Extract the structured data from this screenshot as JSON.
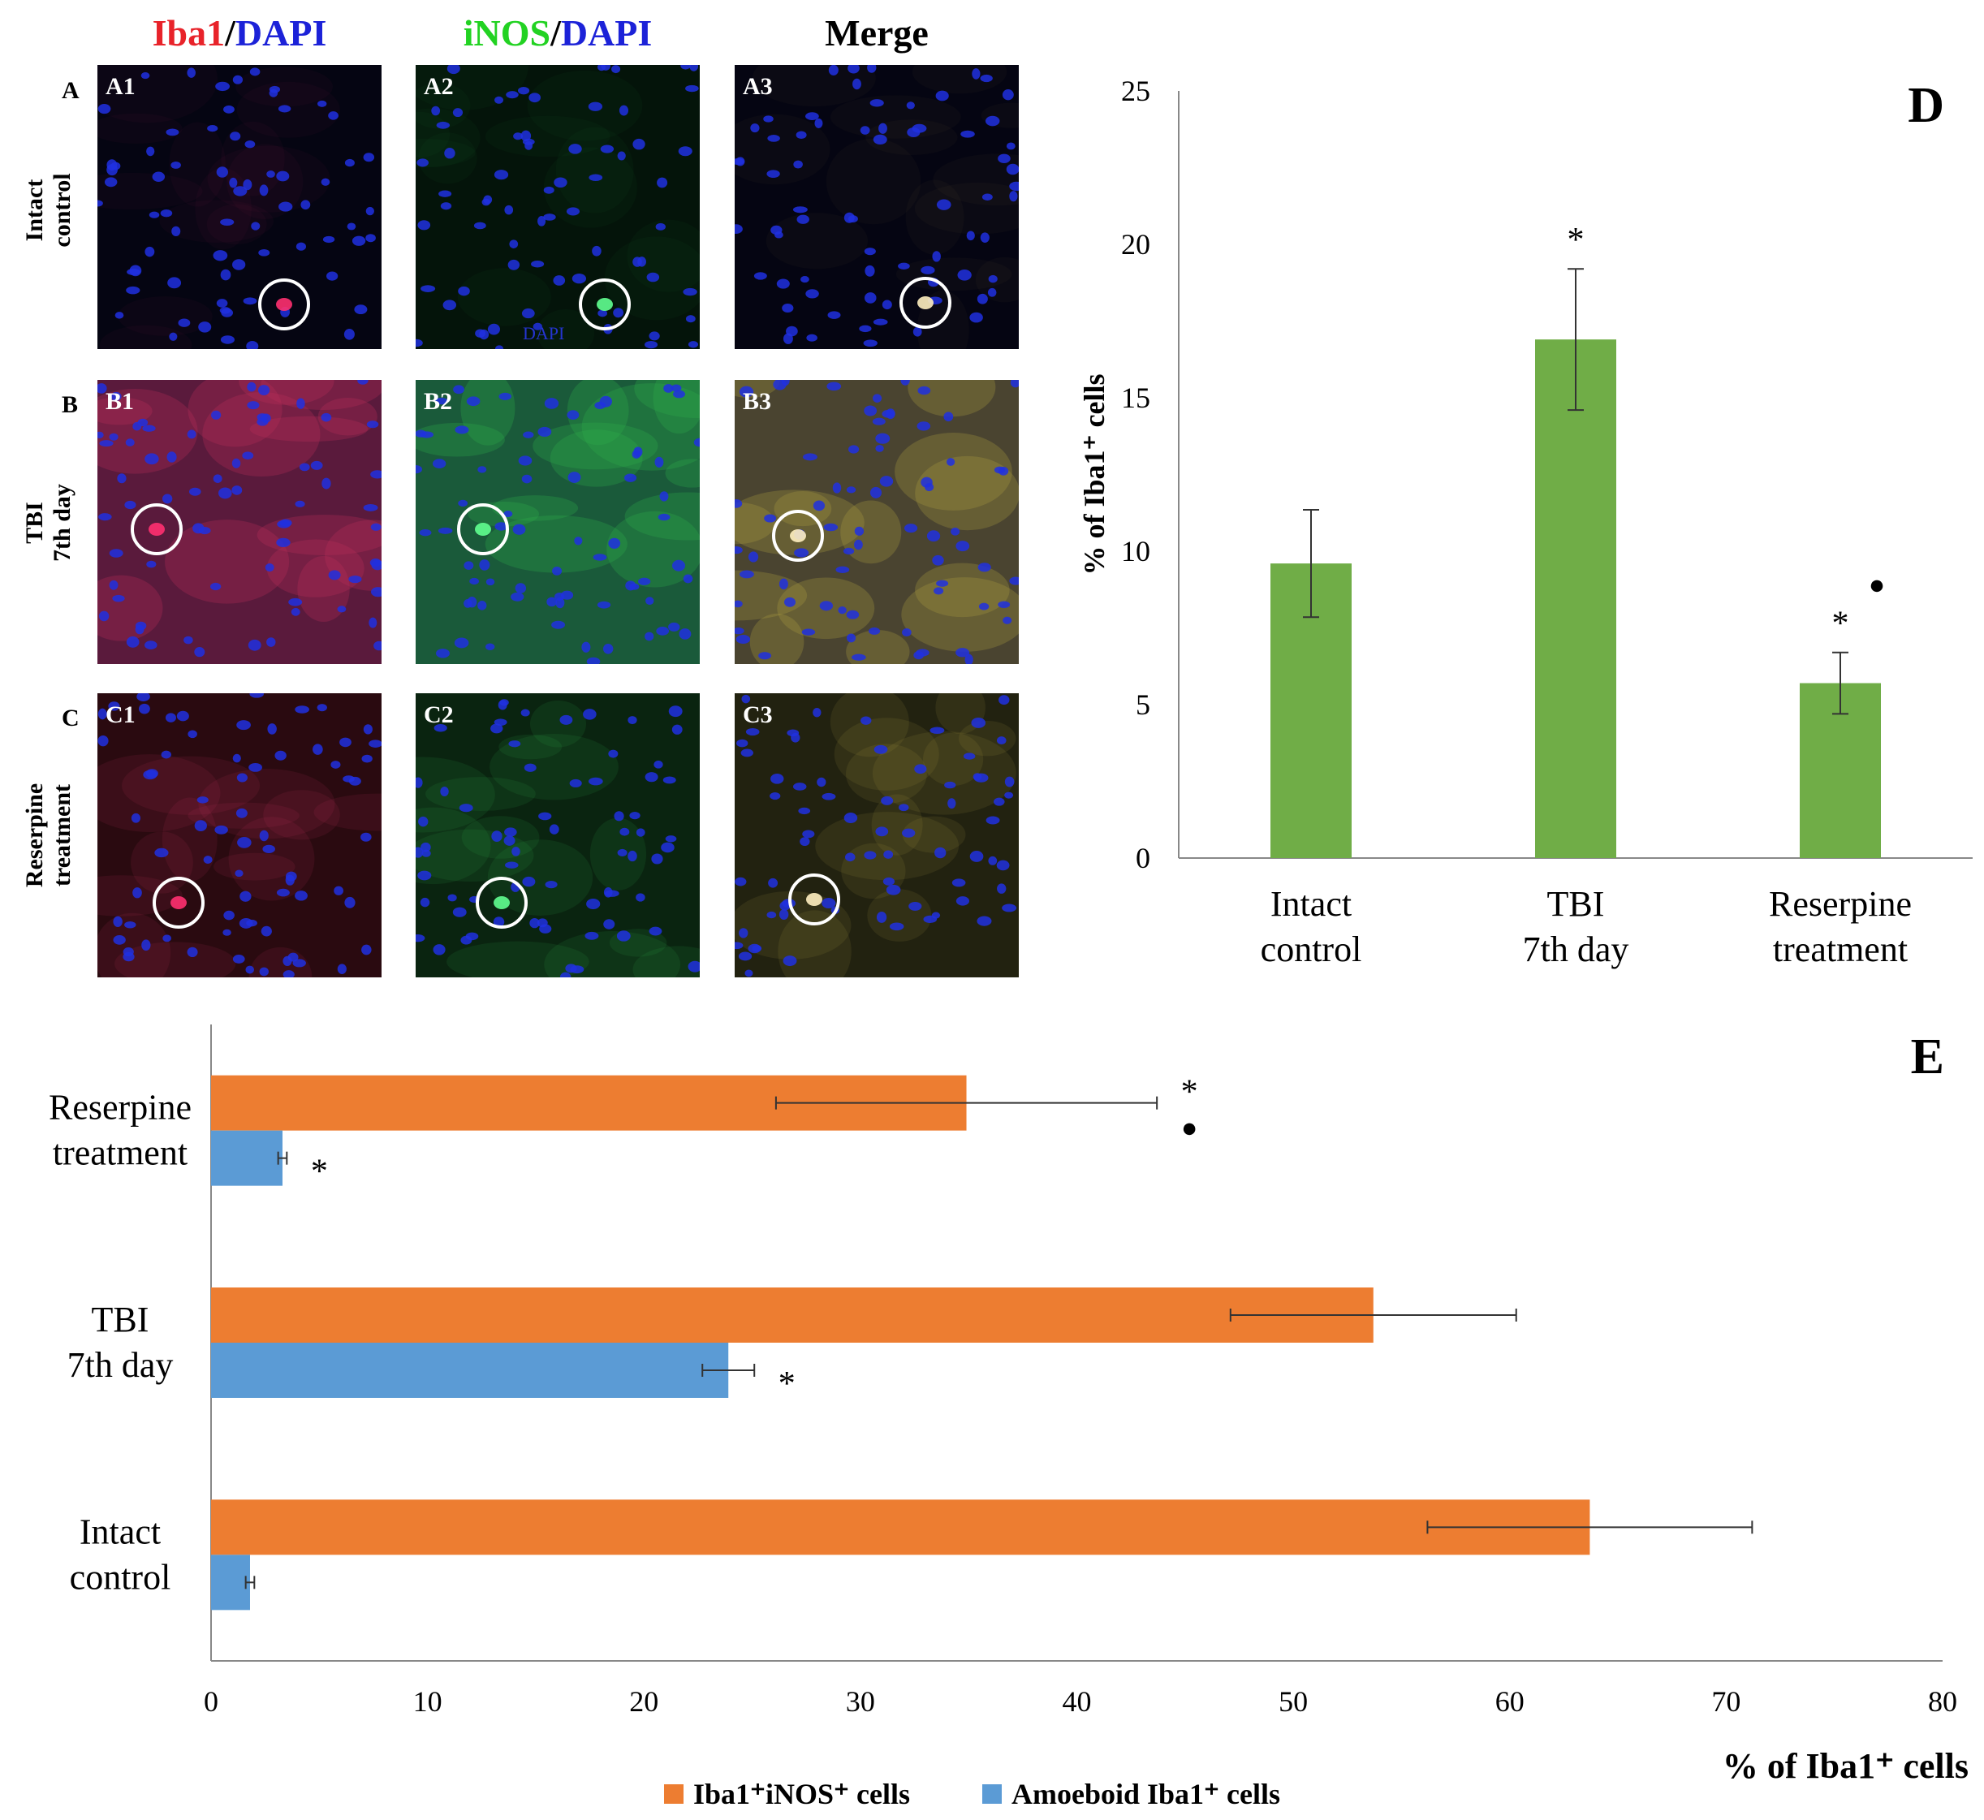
{
  "micrographs": {
    "headers": [
      {
        "parts": [
          {
            "text": "Iba1",
            "color": "red"
          },
          {
            "text": "/",
            "color": "black"
          },
          {
            "text": "DAPI",
            "color": "blue"
          }
        ]
      },
      {
        "parts": [
          {
            "text": "iNOS",
            "color": "green"
          },
          {
            "text": "/",
            "color": "black"
          },
          {
            "text": "DAPI",
            "color": "blue"
          }
        ]
      },
      {
        "parts": [
          {
            "text": "Merge",
            "color": "black"
          }
        ]
      }
    ],
    "rows": [
      {
        "letter": "A",
        "title_line1": "Intact",
        "title_line2": "control",
        "labels": [
          "A1",
          "A2",
          "A3"
        ],
        "tones": [
          "red-sparse",
          "green-sparse",
          "merge-sparse"
        ]
      },
      {
        "letter": "B",
        "title_line1": "TBI",
        "title_line2": "7th day",
        "labels": [
          "B1",
          "B2",
          "B3"
        ],
        "tones": [
          "red-dense",
          "green-dense",
          "merge-dense"
        ]
      },
      {
        "letter": "C",
        "title_line1": "Reserpine",
        "title_line2": "treatment",
        "labels": [
          "C1",
          "C2",
          "C3"
        ],
        "tones": [
          "red-mid",
          "green-mid",
          "merge-mid"
        ]
      }
    ],
    "inset_text": "DAPI"
  },
  "chart_data": [
    {
      "panel": "D",
      "type": "bar",
      "orientation": "vertical",
      "categories": [
        [
          "Intact",
          "control"
        ],
        [
          "TBI",
          "7th day"
        ],
        [
          "Reserpine",
          "treatment"
        ]
      ],
      "values": [
        9.6,
        16.9,
        5.7
      ],
      "errors": [
        1.75,
        2.3,
        1.0
      ],
      "ylabel": "% of Iba1⁺ cells",
      "ylim": [
        0,
        25
      ],
      "yticks": [
        0,
        5,
        10,
        15,
        20,
        25
      ],
      "grid": false,
      "color": "#70ad47",
      "annotations": [
        {
          "category": 1,
          "text": "*"
        },
        {
          "category": 2,
          "text": "* ●"
        }
      ]
    },
    {
      "panel": "E",
      "type": "bar",
      "orientation": "horizontal",
      "categories": [
        [
          "Intact",
          "control"
        ],
        [
          "TBI",
          "7th day"
        ],
        [
          "Reserpine",
          "treatment"
        ]
      ],
      "series": [
        {
          "name": "Iba1⁺iNOS⁺ cells",
          "color": "#ed7d31",
          "values": [
            63.7,
            53.7,
            34.9
          ],
          "errors": [
            7.5,
            6.6,
            8.8
          ]
        },
        {
          "name": "Amoeboid Iba1⁺ cells",
          "color": "#5b9bd5",
          "values": [
            1.8,
            23.9,
            3.3
          ],
          "errors": [
            0.2,
            1.2,
            0.2
          ]
        }
      ],
      "xlabel": "% of Iba1⁺ cells",
      "xlim": [
        0,
        80
      ],
      "xticks": [
        0,
        10,
        20,
        30,
        40,
        50,
        60,
        70,
        80
      ],
      "grid": false,
      "legend": "bottom",
      "annotations": [
        {
          "category": 2,
          "series": 0,
          "text": "* ●"
        },
        {
          "category": 2,
          "series": 1,
          "text": "*"
        },
        {
          "category": 1,
          "series": 1,
          "text": "*"
        }
      ]
    }
  ]
}
